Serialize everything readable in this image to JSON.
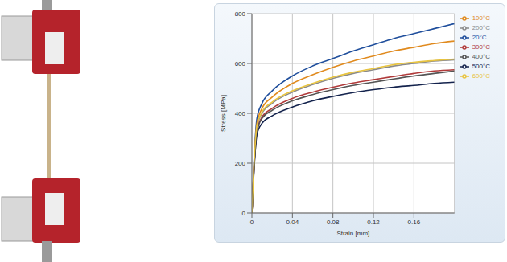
{
  "chart_data": {
    "type": "line",
    "x_label": "Strain [mm]",
    "y_label": "Stress [MPa]",
    "x": [
      0,
      0.002,
      0.005,
      0.01,
      0.02,
      0.04,
      0.06,
      0.08,
      0.1,
      0.12,
      0.14,
      0.16,
      0.18,
      0.2
    ],
    "xlim": [
      0,
      0.2
    ],
    "xticks": [
      0,
      0.04,
      0.08,
      0.12,
      0.16
    ],
    "ylim": [
      0,
      800
    ],
    "yticks": [
      0,
      200,
      400,
      600,
      800
    ],
    "grid": true,
    "legend": "upper right",
    "series": [
      {
        "name": "20°C",
        "color": "#1f4e9c",
        "values": [
          0,
          200,
          380,
          440,
          490,
          550,
          590,
          620,
          650,
          675,
          700,
          720,
          740,
          760
        ]
      },
      {
        "name": "100°C",
        "color": "#e08a1e",
        "values": [
          0,
          190,
          360,
          420,
          465,
          520,
          555,
          585,
          610,
          630,
          650,
          665,
          680,
          690
        ]
      },
      {
        "name": "200°C",
        "color": "#8a8a8a",
        "values": [
          0,
          180,
          345,
          400,
          440,
          485,
          515,
          540,
          560,
          575,
          590,
          600,
          610,
          615
        ]
      },
      {
        "name": "300°C",
        "color": "#b03a3a",
        "values": [
          0,
          175,
          330,
          385,
          420,
          460,
          485,
          505,
          522,
          535,
          548,
          560,
          570,
          575
        ]
      },
      {
        "name": "400°C",
        "color": "#555555",
        "values": [
          0,
          170,
          325,
          380,
          412,
          450,
          475,
          495,
          512,
          525,
          538,
          550,
          560,
          570
        ]
      },
      {
        "name": "500°C",
        "color": "#14234d",
        "values": [
          0,
          165,
          315,
          360,
          390,
          425,
          450,
          468,
          483,
          495,
          505,
          512,
          520,
          525
        ]
      },
      {
        "name": "600°C",
        "color": "#e8c440",
        "values": [
          0,
          185,
          350,
          405,
          445,
          490,
          520,
          545,
          565,
          580,
          595,
          605,
          612,
          618
        ]
      }
    ]
  }
}
